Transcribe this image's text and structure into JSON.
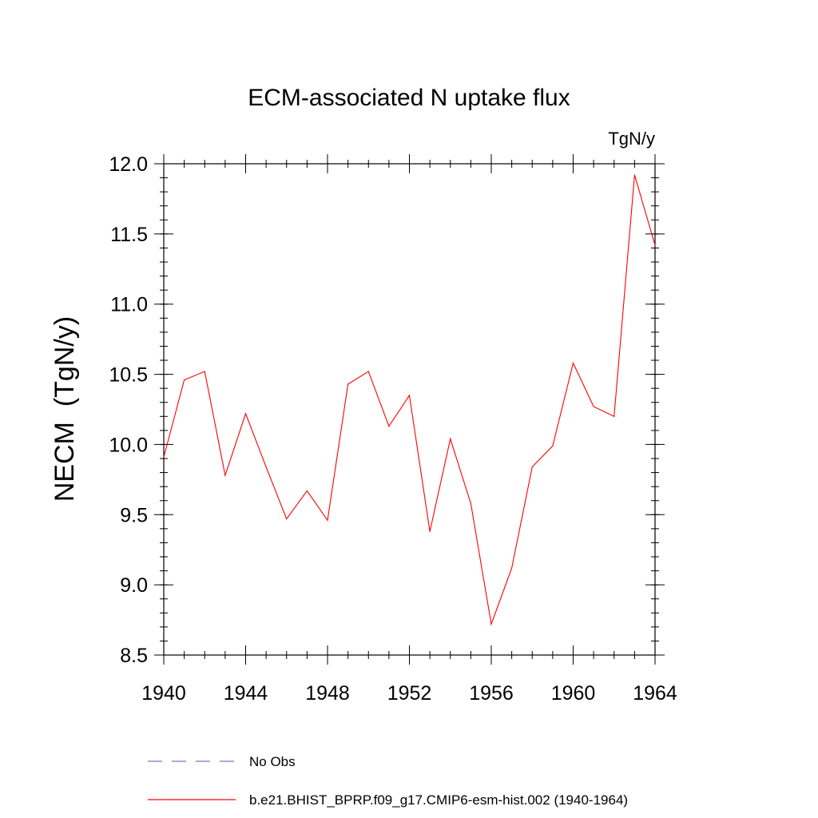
{
  "chart_data": {
    "type": "line",
    "title": "ECM-associated N uptake flux",
    "units_label": "TgN/y",
    "ylabel": "NECM  (TgN/y)",
    "xlabel": "",
    "xlim": [
      1940,
      1964
    ],
    "ylim": [
      8.5,
      12.0
    ],
    "x_ticks": [
      1940,
      1944,
      1948,
      1952,
      1956,
      1960,
      1964
    ],
    "y_ticks": [
      "8.5",
      "9.0",
      "9.5",
      "10.0",
      "10.5",
      "11.0",
      "11.5",
      "12.0"
    ],
    "grid": false,
    "legend_position": "bottom",
    "legend": [
      {
        "name": "No Obs",
        "color": "#7b74c8",
        "style": "dashed"
      },
      {
        "name": "b.e21.BHIST_BPRP.f09_g17.CMIP6-esm-hist.002 (1940-1964)",
        "color": "#ff0000",
        "style": "solid"
      }
    ],
    "x": [
      1940,
      1941,
      1942,
      1943,
      1944,
      1945,
      1946,
      1947,
      1948,
      1949,
      1950,
      1951,
      1952,
      1953,
      1954,
      1955,
      1956,
      1957,
      1958,
      1959,
      1960,
      1961,
      1962,
      1963,
      1964
    ],
    "series": [
      {
        "name": "b.e21.BHIST_BPRP.f09_g17.CMIP6-esm-hist.002 (1940-1964)",
        "color": "#ff0000",
        "values": [
          9.91,
          10.46,
          10.52,
          9.78,
          10.22,
          9.84,
          9.47,
          9.67,
          9.46,
          10.43,
          10.52,
          10.13,
          10.35,
          9.38,
          10.04,
          9.58,
          8.72,
          9.12,
          9.84,
          9.99,
          10.58,
          10.27,
          10.2,
          11.92,
          11.42
        ]
      }
    ]
  }
}
